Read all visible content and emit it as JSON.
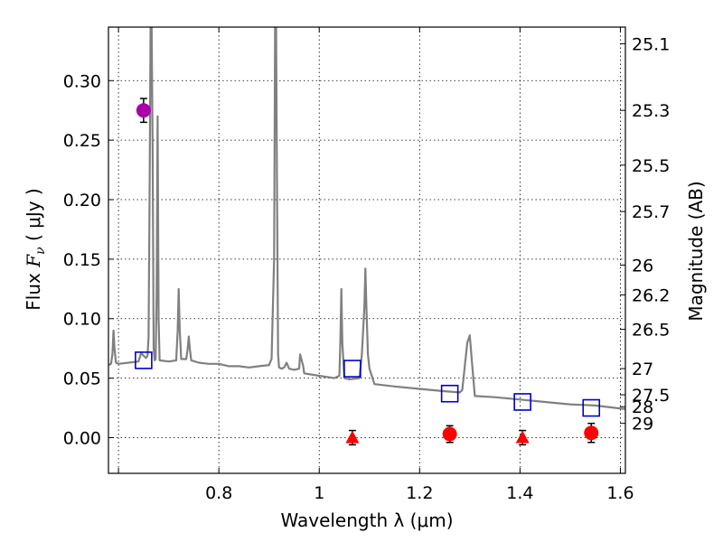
{
  "chart_data": {
    "type": "scatter",
    "title": "",
    "xlabel": "Wavelength  λ (μm)",
    "ylabel": {
      "prefix": "Flux  ",
      "symbol": "F",
      "subscript": "ν",
      "unit": "  ( μJy )"
    },
    "y2label": "Magnitude (AB)",
    "xlim": [
      0.58,
      1.61
    ],
    "ylim": [
      -0.03,
      0.345
    ],
    "grid": true,
    "x_ticks": [
      {
        "value": 0.6,
        "label": ""
      },
      {
        "value": 0.8,
        "label": "0.8"
      },
      {
        "value": 1.0,
        "label": "1"
      },
      {
        "value": 1.2,
        "label": "1.2"
      },
      {
        "value": 1.4,
        "label": "1.4"
      },
      {
        "value": 1.6,
        "label": "1.6"
      }
    ],
    "y_ticks": [
      {
        "value": 0.0,
        "label": "0.00"
      },
      {
        "value": 0.05,
        "label": "0.05"
      },
      {
        "value": 0.1,
        "label": "0.10"
      },
      {
        "value": 0.15,
        "label": "0.15"
      },
      {
        "value": 0.2,
        "label": "0.20"
      },
      {
        "value": 0.25,
        "label": "0.25"
      },
      {
        "value": 0.3,
        "label": "0.30"
      }
    ],
    "magnitude_ticks": [
      {
        "flux": 0.331,
        "label": "25.1"
      },
      {
        "flux": 0.275,
        "label": "25.3"
      },
      {
        "flux": 0.229,
        "label": "25.5"
      },
      {
        "flux": 0.19,
        "label": "25.7"
      },
      {
        "flux": 0.145,
        "label": "26"
      },
      {
        "flux": 0.12,
        "label": "26.2"
      },
      {
        "flux": 0.091,
        "label": "26.5"
      },
      {
        "flux": 0.058,
        "label": "27"
      },
      {
        "flux": 0.036,
        "label": "27.5"
      },
      {
        "flux": 0.026,
        "label": "28"
      },
      {
        "flux": 0.012,
        "label": "29"
      }
    ],
    "series": [
      {
        "kind": "line",
        "color": "#808080",
        "x": [
          0.58,
          0.585,
          0.588,
          0.59,
          0.592,
          0.595,
          0.6,
          0.62,
          0.64,
          0.645,
          0.652,
          0.655,
          0.658,
          0.66,
          0.662,
          0.664,
          0.666,
          0.668,
          0.67,
          0.672,
          0.674,
          0.676,
          0.678,
          0.68,
          0.682,
          0.7,
          0.715,
          0.718,
          0.72,
          0.722,
          0.725,
          0.735,
          0.738,
          0.74,
          0.742,
          0.745,
          0.76,
          0.78,
          0.8,
          0.82,
          0.84,
          0.86,
          0.88,
          0.9,
          0.905,
          0.91,
          0.912,
          0.914,
          0.916,
          0.918,
          0.92,
          0.925,
          0.93,
          0.935,
          0.94,
          0.95,
          0.96,
          0.962,
          0.965,
          0.968,
          0.97,
          1.0,
          1.03,
          1.04,
          1.042,
          1.044,
          1.046,
          1.05,
          1.06,
          1.08,
          1.085,
          1.09,
          1.092,
          1.094,
          1.097,
          1.1,
          1.11,
          1.15,
          1.2,
          1.25,
          1.28,
          1.285,
          1.29,
          1.295,
          1.3,
          1.305,
          1.31,
          1.35,
          1.4,
          1.45,
          1.5,
          1.55,
          1.61
        ],
        "y": [
          0.061,
          0.062,
          0.07,
          0.09,
          0.075,
          0.063,
          0.062,
          0.063,
          0.064,
          0.071,
          0.068,
          0.067,
          0.069,
          0.085,
          0.2,
          0.345,
          0.345,
          0.24,
          0.075,
          0.065,
          0.066,
          0.12,
          0.27,
          0.1,
          0.065,
          0.064,
          0.065,
          0.09,
          0.125,
          0.09,
          0.066,
          0.066,
          0.075,
          0.085,
          0.075,
          0.065,
          0.063,
          0.062,
          0.062,
          0.06,
          0.06,
          0.059,
          0.06,
          0.061,
          0.066,
          0.15,
          0.345,
          0.345,
          0.2,
          0.07,
          0.059,
          0.058,
          0.059,
          0.063,
          0.058,
          0.057,
          0.058,
          0.07,
          0.065,
          0.06,
          0.054,
          0.052,
          0.05,
          0.052,
          0.08,
          0.125,
          0.08,
          0.05,
          0.049,
          0.05,
          0.07,
          0.11,
          0.142,
          0.11,
          0.07,
          0.058,
          0.045,
          0.043,
          0.041,
          0.039,
          0.038,
          0.04,
          0.06,
          0.08,
          0.086,
          0.06,
          0.035,
          0.034,
          0.032,
          0.03,
          0.028,
          0.027,
          0.024
        ]
      },
      {
        "kind": "open_square",
        "color": "#0000cc",
        "x": [
          0.65,
          1.066,
          1.26,
          1.405,
          1.542
        ],
        "y": [
          0.065,
          0.058,
          0.037,
          0.03,
          0.025
        ]
      },
      {
        "kind": "circle",
        "color": "#aa00aa",
        "x": [
          0.65
        ],
        "y": [
          0.275
        ],
        "err": [
          0.01
        ]
      },
      {
        "kind": "circle",
        "color": "#ff0000",
        "x": [
          1.26,
          1.542
        ],
        "y": [
          0.003,
          0.004
        ],
        "err": [
          0.007,
          0.008
        ]
      },
      {
        "kind": "triangle",
        "color": "#ff0000",
        "x": [
          1.066,
          1.405
        ],
        "y": [
          0.0,
          0.0
        ],
        "err": [
          0.006,
          0.006
        ]
      }
    ]
  }
}
